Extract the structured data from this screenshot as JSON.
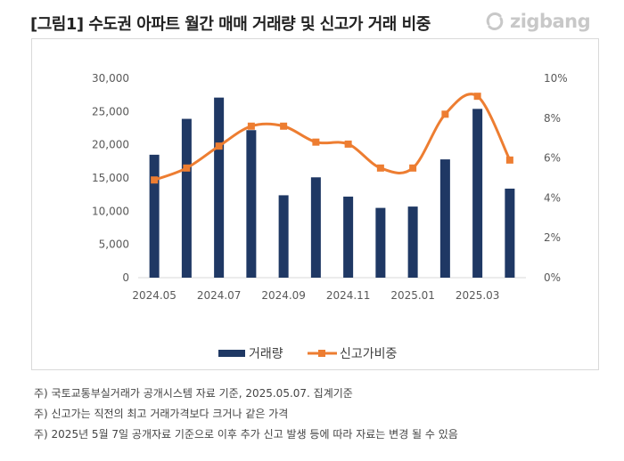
{
  "title": "[그림1] 수도권 아파트 월간 매매 거래량 및 신고가 거래 비중",
  "logo": {
    "text": "zigbang",
    "icon": "zigbang-logo-icon"
  },
  "chart_data": {
    "type": "bar",
    "categories": [
      "2024.05",
      "2024.06",
      "2024.07",
      "2024.08",
      "2024.09",
      "2024.10",
      "2024.11",
      "2024.12",
      "2025.01",
      "2025.02",
      "2025.03",
      "2025.04"
    ],
    "x_tick_labels": [
      "2024.05",
      "2024.07",
      "2024.09",
      "2024.11",
      "2025.01",
      "2025.03"
    ],
    "series": [
      {
        "name": "거래량",
        "kind": "bar",
        "axis": "left",
        "color": "#1f3864",
        "values": [
          18500,
          23900,
          27100,
          22200,
          12400,
          15100,
          12200,
          10500,
          10700,
          17800,
          25400,
          13400
        ]
      },
      {
        "name": "신고가비중",
        "kind": "line",
        "axis": "right",
        "color": "#ed7d31",
        "unit": "%",
        "values": [
          4.9,
          5.5,
          6.6,
          7.6,
          7.6,
          6.8,
          6.7,
          5.5,
          5.5,
          8.2,
          9.1,
          5.9
        ]
      }
    ],
    "y_left": {
      "lim": [
        0,
        30000
      ],
      "ticks": [
        "0",
        "5,000",
        "10,000",
        "15,000",
        "20,000",
        "25,000",
        "30,000"
      ]
    },
    "y_right": {
      "lim": [
        0,
        10
      ],
      "ticks": [
        "0%",
        "2%",
        "4%",
        "6%",
        "8%",
        "10%"
      ]
    },
    "grid": false,
    "legend_position": "bottom"
  },
  "notes": [
    "주) 국토교통부실거래가 공개시스템 자료 기준, 2025.05.07. 집계기준",
    "주) 신고가는 직전의 최고 거래가격보다 크거나 같은 가격",
    "주) 2025년 5월 7일 공개자료 기준으로 이후 추가 신고 발생 등에 따라 자료는 변경 될 수 있음"
  ]
}
